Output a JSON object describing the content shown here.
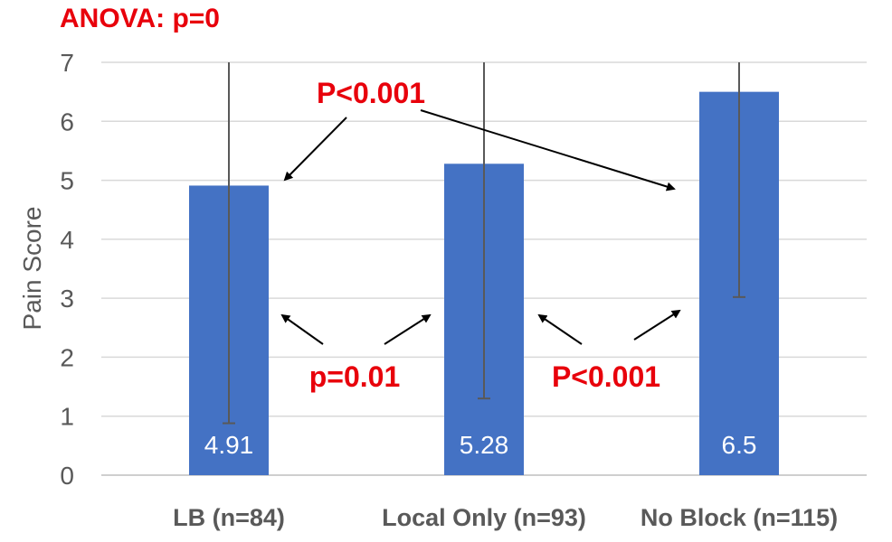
{
  "chart_data": {
    "type": "bar",
    "title": "ANOVA: p=0",
    "xlabel": "",
    "ylabel": "Pain Score",
    "ylim": [
      0,
      7
    ],
    "yticks": [
      0,
      1,
      2,
      3,
      4,
      5,
      6,
      7
    ],
    "grid": true,
    "legend": "none",
    "categories": [
      "LB (n=84)",
      "Local Only (n=93)",
      "No Block (n=115)"
    ],
    "values": [
      4.91,
      5.28,
      6.5
    ],
    "value_labels": [
      "4.91",
      "5.28",
      "6.5"
    ],
    "error_bars": [
      {
        "low": 0.88,
        "high": 7
      },
      {
        "low": 1.3,
        "high": 7
      },
      {
        "low": 3.02,
        "high": 7
      }
    ],
    "annotations": [
      {
        "text": "P<0.001",
        "compares": [
          "LB (n=84)",
          "No Block (n=115)"
        ]
      },
      {
        "text": "p=0.01",
        "compares": [
          "LB (n=84)",
          "Local Only (n=93)"
        ]
      },
      {
        "text": "P<0.001",
        "compares": [
          "Local Only (n=93)",
          "No Block (n=115)"
        ]
      }
    ],
    "colors": {
      "bar": "#4472c4",
      "annotation": "#e8000b",
      "grid": "#d9d9d9",
      "axis_text": "#595959"
    }
  }
}
